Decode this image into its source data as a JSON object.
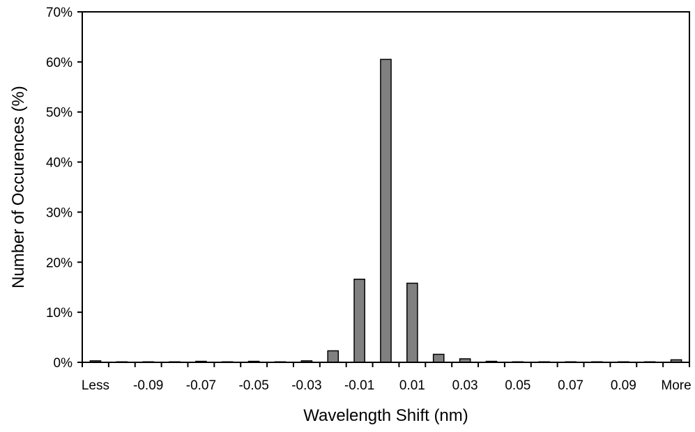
{
  "chart_data": {
    "type": "bar",
    "title": "",
    "xlabel": "Wavelength Shift (nm)",
    "ylabel": "Number of Occurences (%)",
    "ylim": [
      0,
      70
    ],
    "yticks": [
      "0%",
      "10%",
      "20%",
      "30%",
      "40%",
      "50%",
      "60%",
      "70%"
    ],
    "categories": [
      "Less",
      "-0.1",
      "-0.09",
      "-0.08",
      "-0.07",
      "-0.06",
      "-0.05",
      "-0.04",
      "-0.03",
      "-0.02",
      "-0.01",
      "0",
      "0.01",
      "0.02",
      "0.03",
      "0.04",
      "0.05",
      "0.06",
      "0.07",
      "0.08",
      "0.09",
      "0.1",
      "More"
    ],
    "tick_labels": [
      "Less",
      "",
      "-0.09",
      "",
      "-0.07",
      "",
      "-0.05",
      "",
      "-0.03",
      "",
      "-0.01",
      "",
      "0.01",
      "",
      "0.03",
      "",
      "0.05",
      "",
      "0.07",
      "",
      "0.09",
      "",
      "More"
    ],
    "values": [
      0.3,
      0.1,
      0.1,
      0.1,
      0.2,
      0.1,
      0.2,
      0.1,
      0.3,
      2.3,
      16.6,
      60.5,
      15.8,
      1.6,
      0.7,
      0.2,
      0.1,
      0.1,
      0.1,
      0.1,
      0.1,
      0.1,
      0.5
    ],
    "grid": false,
    "legend": "none",
    "colors": {
      "bar_fill": "#808080",
      "bar_stroke": "#000000",
      "axis": "#000000",
      "background": "#ffffff"
    }
  }
}
